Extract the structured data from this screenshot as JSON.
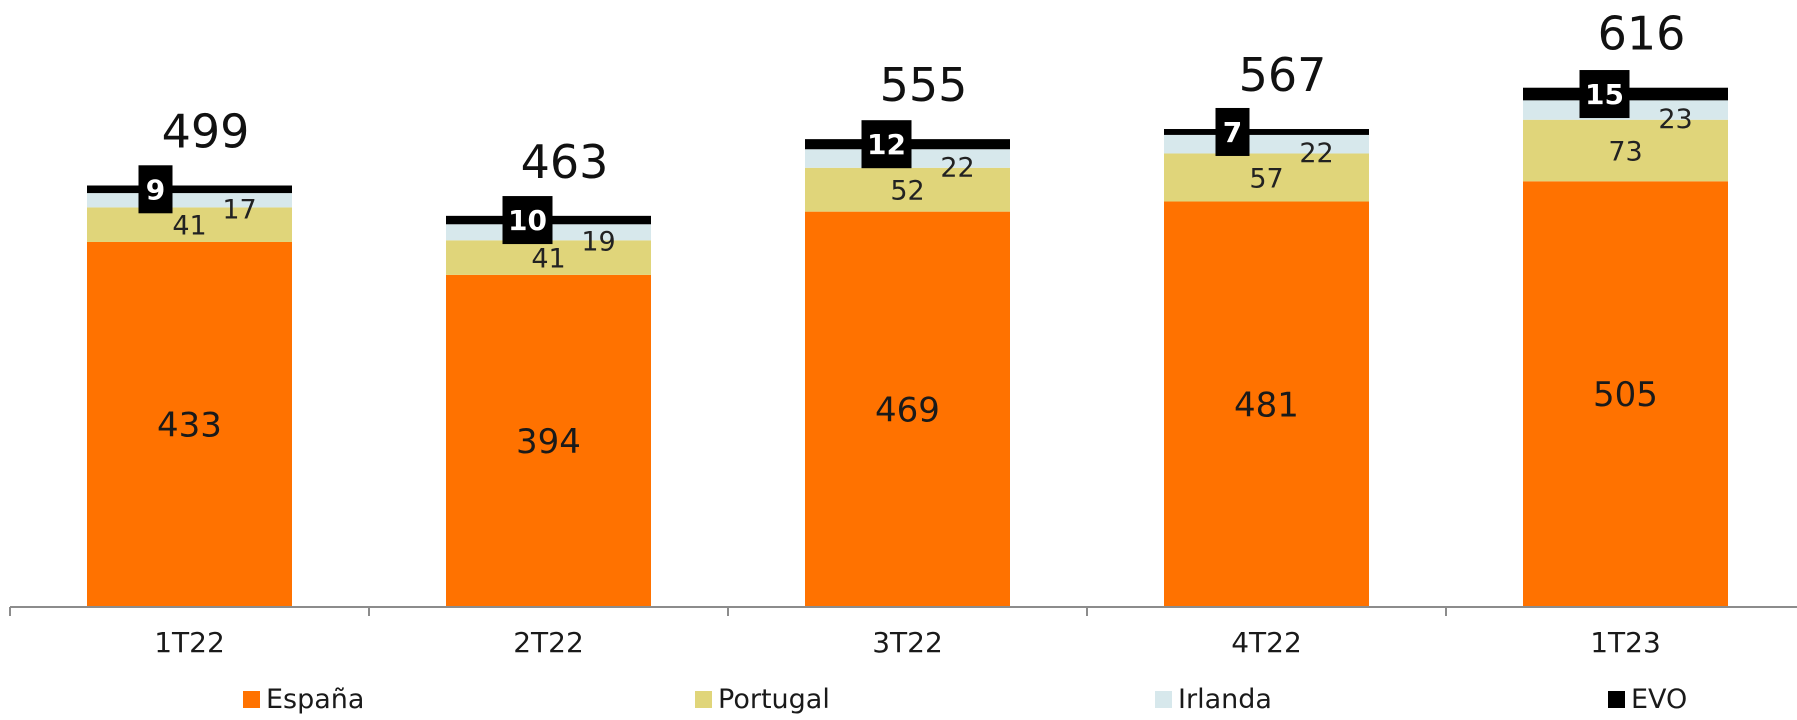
{
  "chart_data": {
    "type": "bar",
    "stacked": true,
    "categories": [
      "1T22",
      "2T22",
      "3T22",
      "4T22",
      "1T23"
    ],
    "series": [
      {
        "name": "España",
        "values": [
          433,
          394,
          469,
          481,
          505
        ],
        "color": "#ff7200"
      },
      {
        "name": "Portugal",
        "values": [
          41,
          41,
          52,
          57,
          73
        ],
        "color": "#e0d57a"
      },
      {
        "name": "Irlanda",
        "values": [
          17,
          19,
          22,
          22,
          23
        ],
        "color": "#d7e8ec"
      },
      {
        "name": "EVO",
        "values": [
          9,
          10,
          12,
          7,
          15
        ],
        "color": "#000000"
      }
    ],
    "totals": [
      499,
      463,
      555,
      567,
      616
    ],
    "legend_position": "bottom",
    "grid": false
  }
}
